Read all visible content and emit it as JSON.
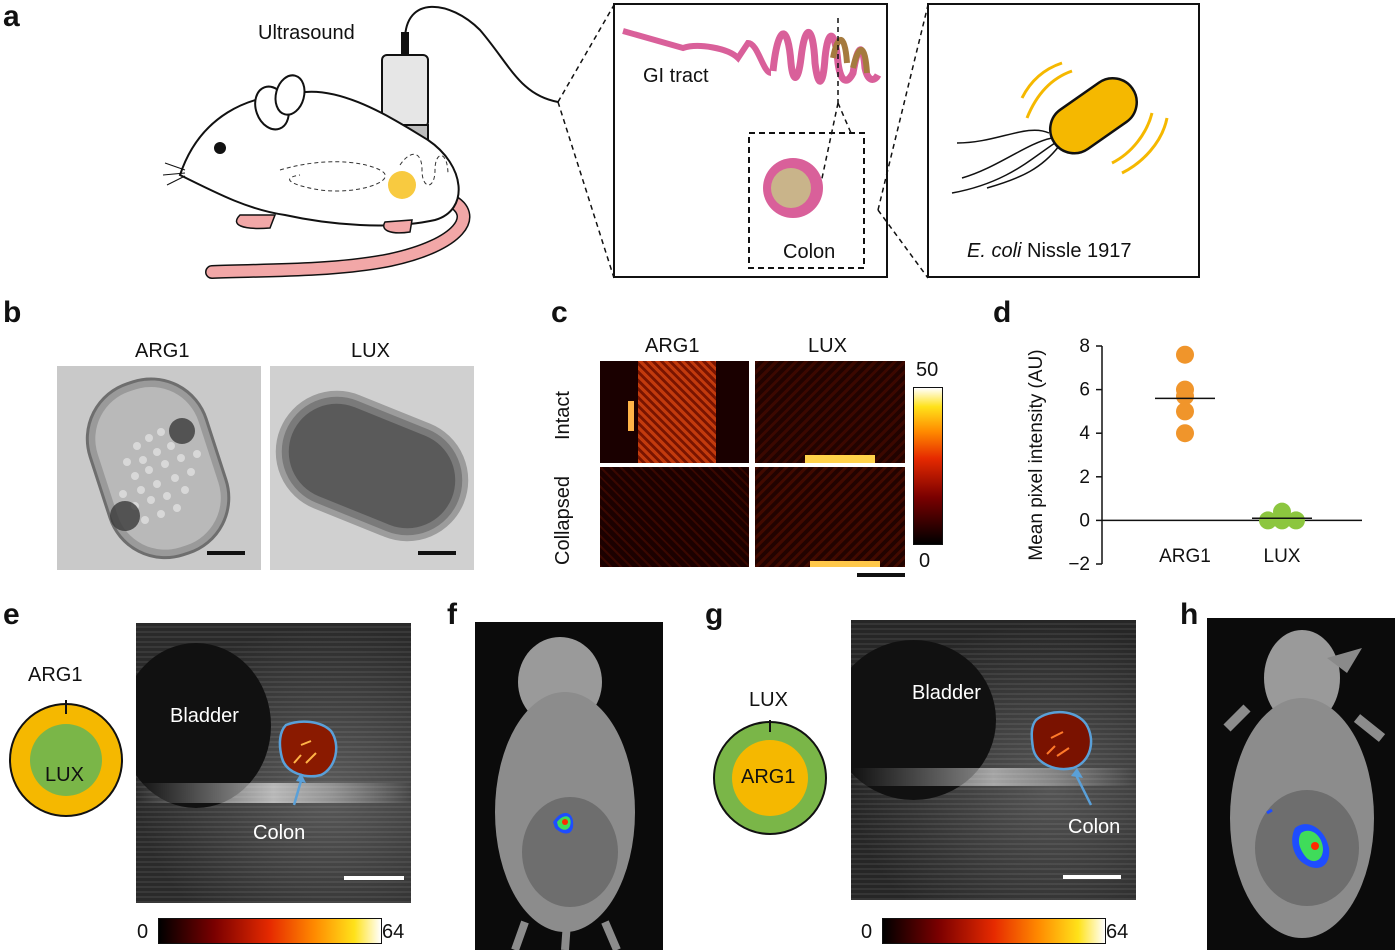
{
  "panels": {
    "a": "a",
    "b": "b",
    "c": "c",
    "d": "d",
    "e": "e",
    "f": "f",
    "g": "g",
    "h": "h"
  },
  "panel_a": {
    "probe_label": "Ultrasound",
    "gi_label": "GI tract",
    "colon_label": "Colon",
    "bacterium_italic": "E. coli",
    "bacterium_rest": " Nissle 1917"
  },
  "panel_b": {
    "left_title": "ARG1",
    "right_title": "LUX"
  },
  "panel_c": {
    "col1": "ARG1",
    "col2": "LUX",
    "row1": "Intact",
    "row2": "Collapsed",
    "cbar_max": "50",
    "cbar_min": "0"
  },
  "panel_e": {
    "outer_label": "ARG1",
    "inner_label": "LUX",
    "bladder": "Bladder",
    "colon": "Colon",
    "cbar_min": "0",
    "cbar_max": "64"
  },
  "panel_g": {
    "outer_label": "LUX",
    "inner_label": "ARG1",
    "bladder": "Bladder",
    "colon": "Colon",
    "cbar_min": "0",
    "cbar_max": "64"
  },
  "colors": {
    "arg1": "#f5b800",
    "lux": "#7ab648",
    "orange_points": "#f0952b",
    "green_points": "#8cc63f",
    "outline_blue": "#5aa0d8",
    "gi_pink": "#d9609a",
    "tail_pink": "#f2a7a7"
  },
  "chart_data": {
    "type": "scatter",
    "ylabel": "Mean pixel intensity (AU)",
    "ylim": [
      -2,
      8
    ],
    "yticks": [
      "8",
      "6",
      "4",
      "2",
      "0",
      "−2"
    ],
    "categories": [
      "ARG1",
      "LUX"
    ],
    "series": [
      {
        "name": "ARG1",
        "values": [
          7.6,
          6.0,
          5.7,
          5.0,
          4.0
        ],
        "mean": 5.6
      },
      {
        "name": "LUX",
        "values": [
          0.4,
          0.05,
          0.0,
          0.0,
          0.0
        ],
        "mean": 0.1
      }
    ]
  }
}
